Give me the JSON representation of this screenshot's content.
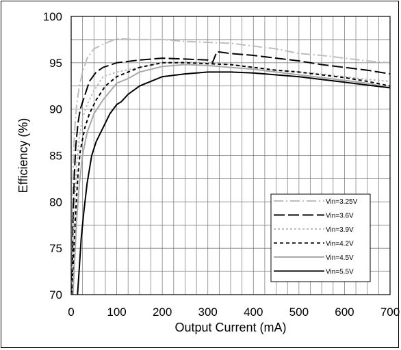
{
  "chart_data": {
    "type": "line",
    "title": "",
    "xlabel": "Output Current (mA)",
    "ylabel": "Efficiency (%)",
    "xlim": [
      0,
      700
    ],
    "ylim": [
      70,
      100
    ],
    "x_ticks": [
      "0",
      "100",
      "200",
      "300",
      "400",
      "500",
      "600",
      "700"
    ],
    "y_ticks": [
      "70",
      "75",
      "80",
      "85",
      "90",
      "95",
      "100"
    ],
    "grid": true,
    "legend_position": "bottom-right",
    "series": [
      {
        "name": "Vin=3.25V",
        "color": "#bdbdbd",
        "dash": "dashdot",
        "points": [
          [
            1,
            70
          ],
          [
            3,
            80
          ],
          [
            5,
            85
          ],
          [
            8,
            88
          ],
          [
            12,
            90.5
          ],
          [
            18,
            92.5
          ],
          [
            25,
            94
          ],
          [
            35,
            95.5
          ],
          [
            50,
            96.5
          ],
          [
            70,
            97
          ],
          [
            100,
            97.6
          ],
          [
            150,
            97.5
          ],
          [
            200,
            97.5
          ],
          [
            250,
            97.3
          ],
          [
            300,
            97.2
          ],
          [
            350,
            97.1
          ],
          [
            400,
            96.8
          ],
          [
            450,
            96.5
          ],
          [
            500,
            96
          ],
          [
            550,
            95.8
          ],
          [
            600,
            95.5
          ],
          [
            650,
            95.2
          ],
          [
            700,
            95
          ]
        ]
      },
      {
        "name": "Vin=3.6V",
        "color": "#000000",
        "dash": "longdash",
        "points": [
          [
            2,
            70
          ],
          [
            4,
            78
          ],
          [
            7,
            83
          ],
          [
            10,
            86
          ],
          [
            15,
            88.5
          ],
          [
            20,
            90
          ],
          [
            30,
            91.5
          ],
          [
            40,
            93
          ],
          [
            55,
            94
          ],
          [
            70,
            94.5
          ],
          [
            100,
            95
          ],
          [
            150,
            95.3
          ],
          [
            200,
            95.5
          ],
          [
            250,
            95.4
          ],
          [
            300,
            95.3
          ],
          [
            310,
            95
          ],
          [
            320,
            96.2
          ],
          [
            350,
            96
          ],
          [
            400,
            95.8
          ],
          [
            450,
            95.5
          ],
          [
            500,
            95.2
          ],
          [
            550,
            94.8
          ],
          [
            600,
            94.5
          ],
          [
            650,
            94.2
          ],
          [
            700,
            93.8
          ]
        ]
      },
      {
        "name": "Vin=3.9V",
        "color": "#bdbdbd",
        "dash": "dotted",
        "points": [
          [
            2,
            70
          ],
          [
            5,
            76
          ],
          [
            8,
            80
          ],
          [
            12,
            84
          ],
          [
            18,
            87
          ],
          [
            25,
            89
          ],
          [
            35,
            90.5
          ],
          [
            50,
            92
          ],
          [
            70,
            93.5
          ],
          [
            100,
            94
          ],
          [
            150,
            94.5
          ],
          [
            200,
            95
          ],
          [
            250,
            95.1
          ],
          [
            300,
            95
          ],
          [
            350,
            94.8
          ],
          [
            400,
            94.5
          ],
          [
            450,
            94.2
          ],
          [
            500,
            94
          ],
          [
            550,
            93.8
          ],
          [
            600,
            93.5
          ],
          [
            650,
            93.2
          ],
          [
            700,
            93
          ]
        ]
      },
      {
        "name": "Vin=4.2V",
        "color": "#000000",
        "dash": "shortdash",
        "points": [
          [
            3,
            70
          ],
          [
            6,
            75
          ],
          [
            10,
            79
          ],
          [
            15,
            83
          ],
          [
            20,
            85.5
          ],
          [
            30,
            88
          ],
          [
            40,
            89.5
          ],
          [
            55,
            91
          ],
          [
            75,
            92.5
          ],
          [
            100,
            93.5
          ],
          [
            150,
            94.5
          ],
          [
            200,
            95
          ],
          [
            250,
            95
          ],
          [
            300,
            94.9
          ],
          [
            350,
            94.8
          ],
          [
            400,
            94.5
          ],
          [
            450,
            94.2
          ],
          [
            500,
            94
          ],
          [
            550,
            93.7
          ],
          [
            600,
            93.4
          ],
          [
            650,
            93
          ],
          [
            700,
            92.5
          ]
        ]
      },
      {
        "name": "Vin=4.5V",
        "color": "#a8a8a8",
        "dash": "solid",
        "points": [
          [
            4,
            70
          ],
          [
            8,
            74
          ],
          [
            12,
            78
          ],
          [
            18,
            82
          ],
          [
            25,
            85
          ],
          [
            35,
            87.5
          ],
          [
            50,
            89.5
          ],
          [
            70,
            91
          ],
          [
            100,
            92.8
          ],
          [
            125,
            93.3
          ],
          [
            150,
            94
          ],
          [
            200,
            94.6
          ],
          [
            250,
            94.8
          ],
          [
            300,
            94.7
          ],
          [
            350,
            94.5
          ],
          [
            400,
            94.3
          ],
          [
            450,
            94
          ],
          [
            500,
            93.7
          ],
          [
            550,
            93.4
          ],
          [
            600,
            93.1
          ],
          [
            650,
            92.8
          ],
          [
            700,
            92.3
          ]
        ]
      },
      {
        "name": "Vin=5.5V",
        "color": "#000000",
        "dash": "solid",
        "points": [
          [
            14,
            70
          ],
          [
            18,
            73
          ],
          [
            22,
            76
          ],
          [
            28,
            79
          ],
          [
            35,
            82
          ],
          [
            45,
            85
          ],
          [
            55,
            86.5
          ],
          [
            70,
            88
          ],
          [
            85,
            89.5
          ],
          [
            100,
            90.5
          ],
          [
            110,
            90.8
          ],
          [
            125,
            91.6
          ],
          [
            150,
            92.5
          ],
          [
            200,
            93.5
          ],
          [
            250,
            93.8
          ],
          [
            300,
            94
          ],
          [
            350,
            94
          ],
          [
            400,
            93.9
          ],
          [
            450,
            93.7
          ],
          [
            500,
            93.5
          ],
          [
            550,
            93.2
          ],
          [
            600,
            92.9
          ],
          [
            650,
            92.6
          ],
          [
            700,
            92.3
          ]
        ]
      }
    ]
  }
}
